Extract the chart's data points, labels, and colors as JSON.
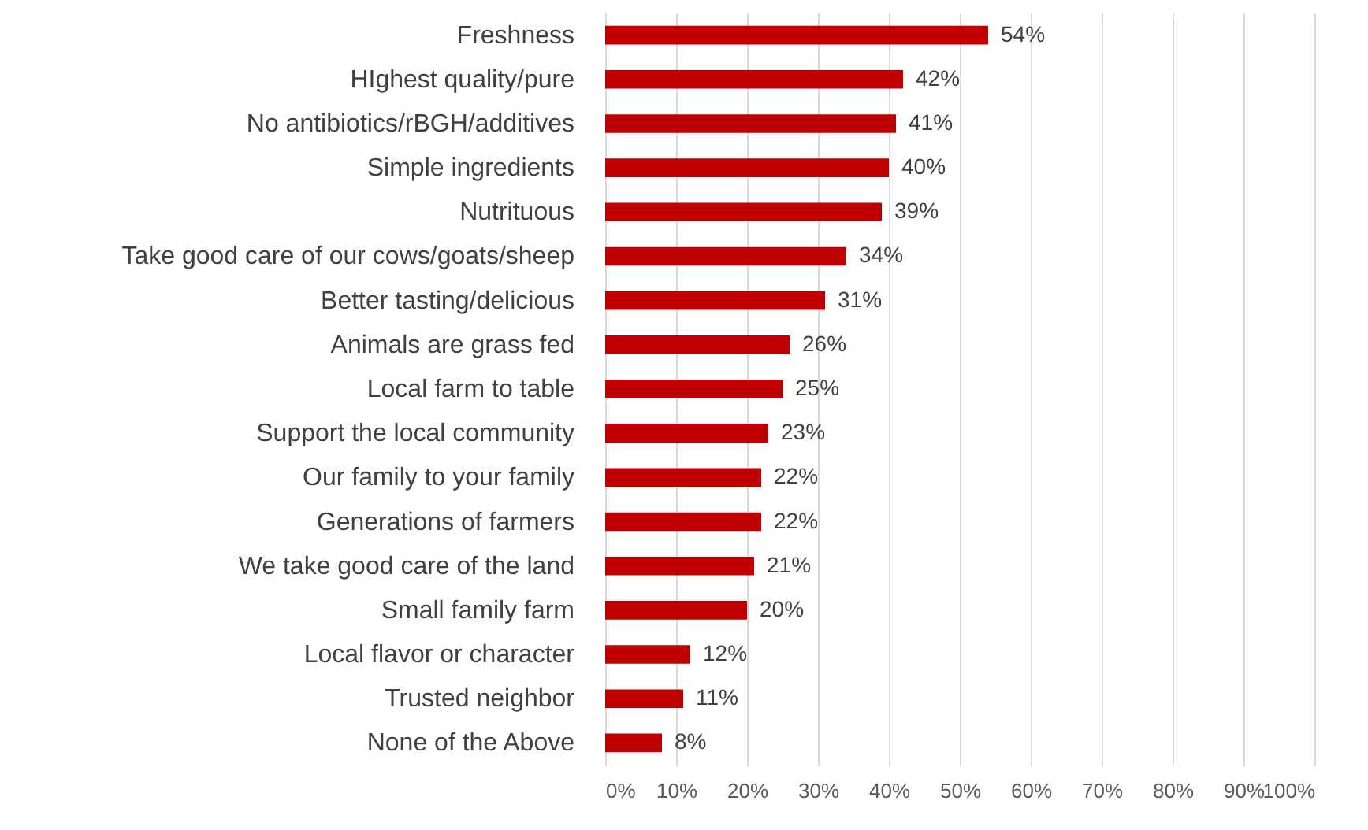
{
  "chart_data": {
    "type": "bar",
    "orientation": "horizontal",
    "categories": [
      "Freshness",
      "HIghest quality/pure",
      "No antibiotics/rBGH/additives",
      "Simple ingredients",
      "Nutrituous",
      "Take good care of our cows/goats/sheep",
      "Better tasting/delicious",
      "Animals are grass fed",
      "Local farm to table",
      "Support the local community",
      "Our family to your family",
      "Generations of farmers",
      "We take good care of the land",
      "Small family farm",
      "Local flavor or character",
      "Trusted neighbor",
      "None of the Above"
    ],
    "values": [
      54,
      42,
      41,
      40,
      39,
      34,
      31,
      26,
      25,
      23,
      22,
      22,
      21,
      20,
      12,
      11,
      8
    ],
    "value_labels": [
      "54%",
      "42%",
      "41%",
      "40%",
      "39%",
      "34%",
      "31%",
      "26%",
      "25%",
      "23%",
      "22%",
      "22%",
      "21%",
      "20%",
      "12%",
      "11%",
      "8%"
    ],
    "color": "#c00000",
    "xlim": [
      0,
      100
    ],
    "xticks": [
      {
        "value": 0,
        "label": "0%"
      },
      {
        "value": 10,
        "label": "10%"
      },
      {
        "value": 20,
        "label": "20%"
      },
      {
        "value": 30,
        "label": "30%"
      },
      {
        "value": 40,
        "label": "40%"
      },
      {
        "value": 50,
        "label": "50%"
      },
      {
        "value": 60,
        "label": "60%"
      },
      {
        "value": 70,
        "label": "70%"
      },
      {
        "value": 80,
        "label": "80%"
      },
      {
        "value": 90,
        "label": "90%"
      },
      {
        "value": 100,
        "label": "100%"
      }
    ],
    "grid": "x"
  }
}
